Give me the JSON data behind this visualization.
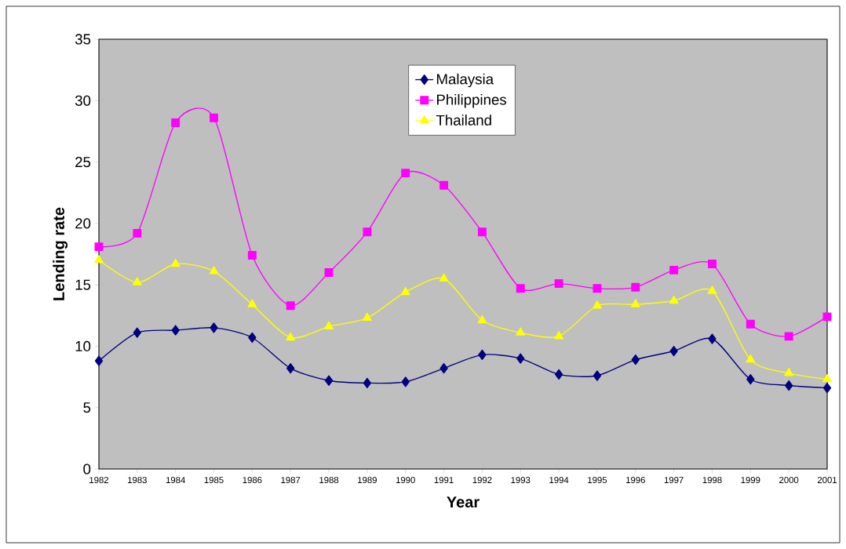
{
  "chart_data": {
    "type": "line",
    "xlabel": "Year",
    "ylabel": "Lending rate",
    "categories": [
      "1982",
      "1983",
      "1984",
      "1985",
      "1986",
      "1987",
      "1988",
      "1989",
      "1990",
      "1991",
      "1992",
      "1993",
      "1994",
      "1995",
      "1996",
      "1997",
      "1998",
      "1999",
      "2000",
      "2001"
    ],
    "ylim": [
      0,
      35
    ],
    "yticks": [
      0,
      5,
      10,
      15,
      20,
      25,
      30,
      35
    ],
    "grid": false,
    "legend": "top",
    "series": [
      {
        "name": "Malaysia",
        "color": "#000080",
        "marker": "diamond",
        "values": [
          8.8,
          11.1,
          11.3,
          11.5,
          10.7,
          8.2,
          7.2,
          7.0,
          7.1,
          8.2,
          9.3,
          9.0,
          7.7,
          7.6,
          8.9,
          9.6,
          10.6,
          7.3,
          6.8,
          6.6
        ]
      },
      {
        "name": "Philippines",
        "color": "#ff00ff",
        "marker": "square",
        "values": [
          18.1,
          19.2,
          28.2,
          28.6,
          17.4,
          13.3,
          16.0,
          19.3,
          24.1,
          23.1,
          19.3,
          14.7,
          15.1,
          14.7,
          14.8,
          16.2,
          16.7,
          11.8,
          10.8,
          12.4
        ]
      },
      {
        "name": "Thailand",
        "color": "#ffff00",
        "marker": "triangle",
        "values": [
          17.0,
          15.2,
          16.7,
          16.1,
          13.4,
          10.7,
          11.6,
          12.3,
          14.4,
          15.5,
          12.1,
          11.1,
          10.8,
          13.3,
          13.4,
          13.7,
          14.5,
          8.9,
          7.8,
          7.3
        ]
      }
    ]
  }
}
